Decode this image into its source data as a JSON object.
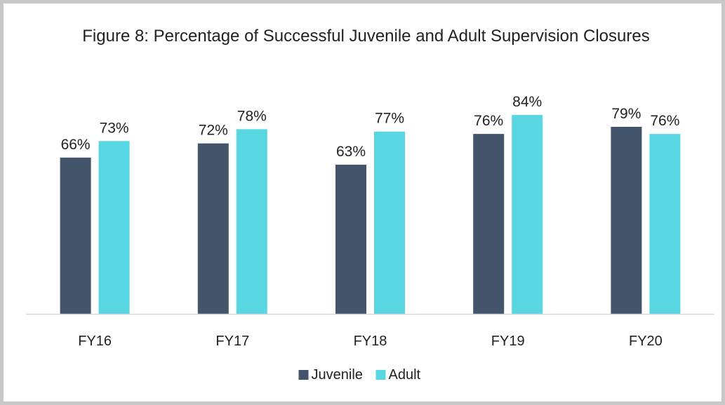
{
  "chart_data": {
    "type": "bar",
    "title": "Figure 8: Percentage of Successful Juvenile and Adult Supervision Closures",
    "categories": [
      "FY16",
      "FY17",
      "FY18",
      "FY19",
      "FY20"
    ],
    "series": [
      {
        "name": "Juvenile",
        "color": "#44546a",
        "values": [
          66,
          72,
          63,
          76,
          79
        ],
        "labels": [
          "66%",
          "72%",
          "63%",
          "76%",
          "79%"
        ]
      },
      {
        "name": "Adult",
        "color": "#58d7e3",
        "values": [
          73,
          78,
          77,
          84,
          76
        ],
        "labels": [
          "73%",
          "78%",
          "77%",
          "84%",
          "76%"
        ]
      }
    ],
    "ylim": [
      0,
      100
    ],
    "unit": "%",
    "xlabel": "",
    "ylabel": "",
    "grid": false,
    "legend_position": "bottom"
  },
  "colors": {
    "axis": "#d9d9d9",
    "frame": "#c8c8c8",
    "text": "#222222"
  }
}
